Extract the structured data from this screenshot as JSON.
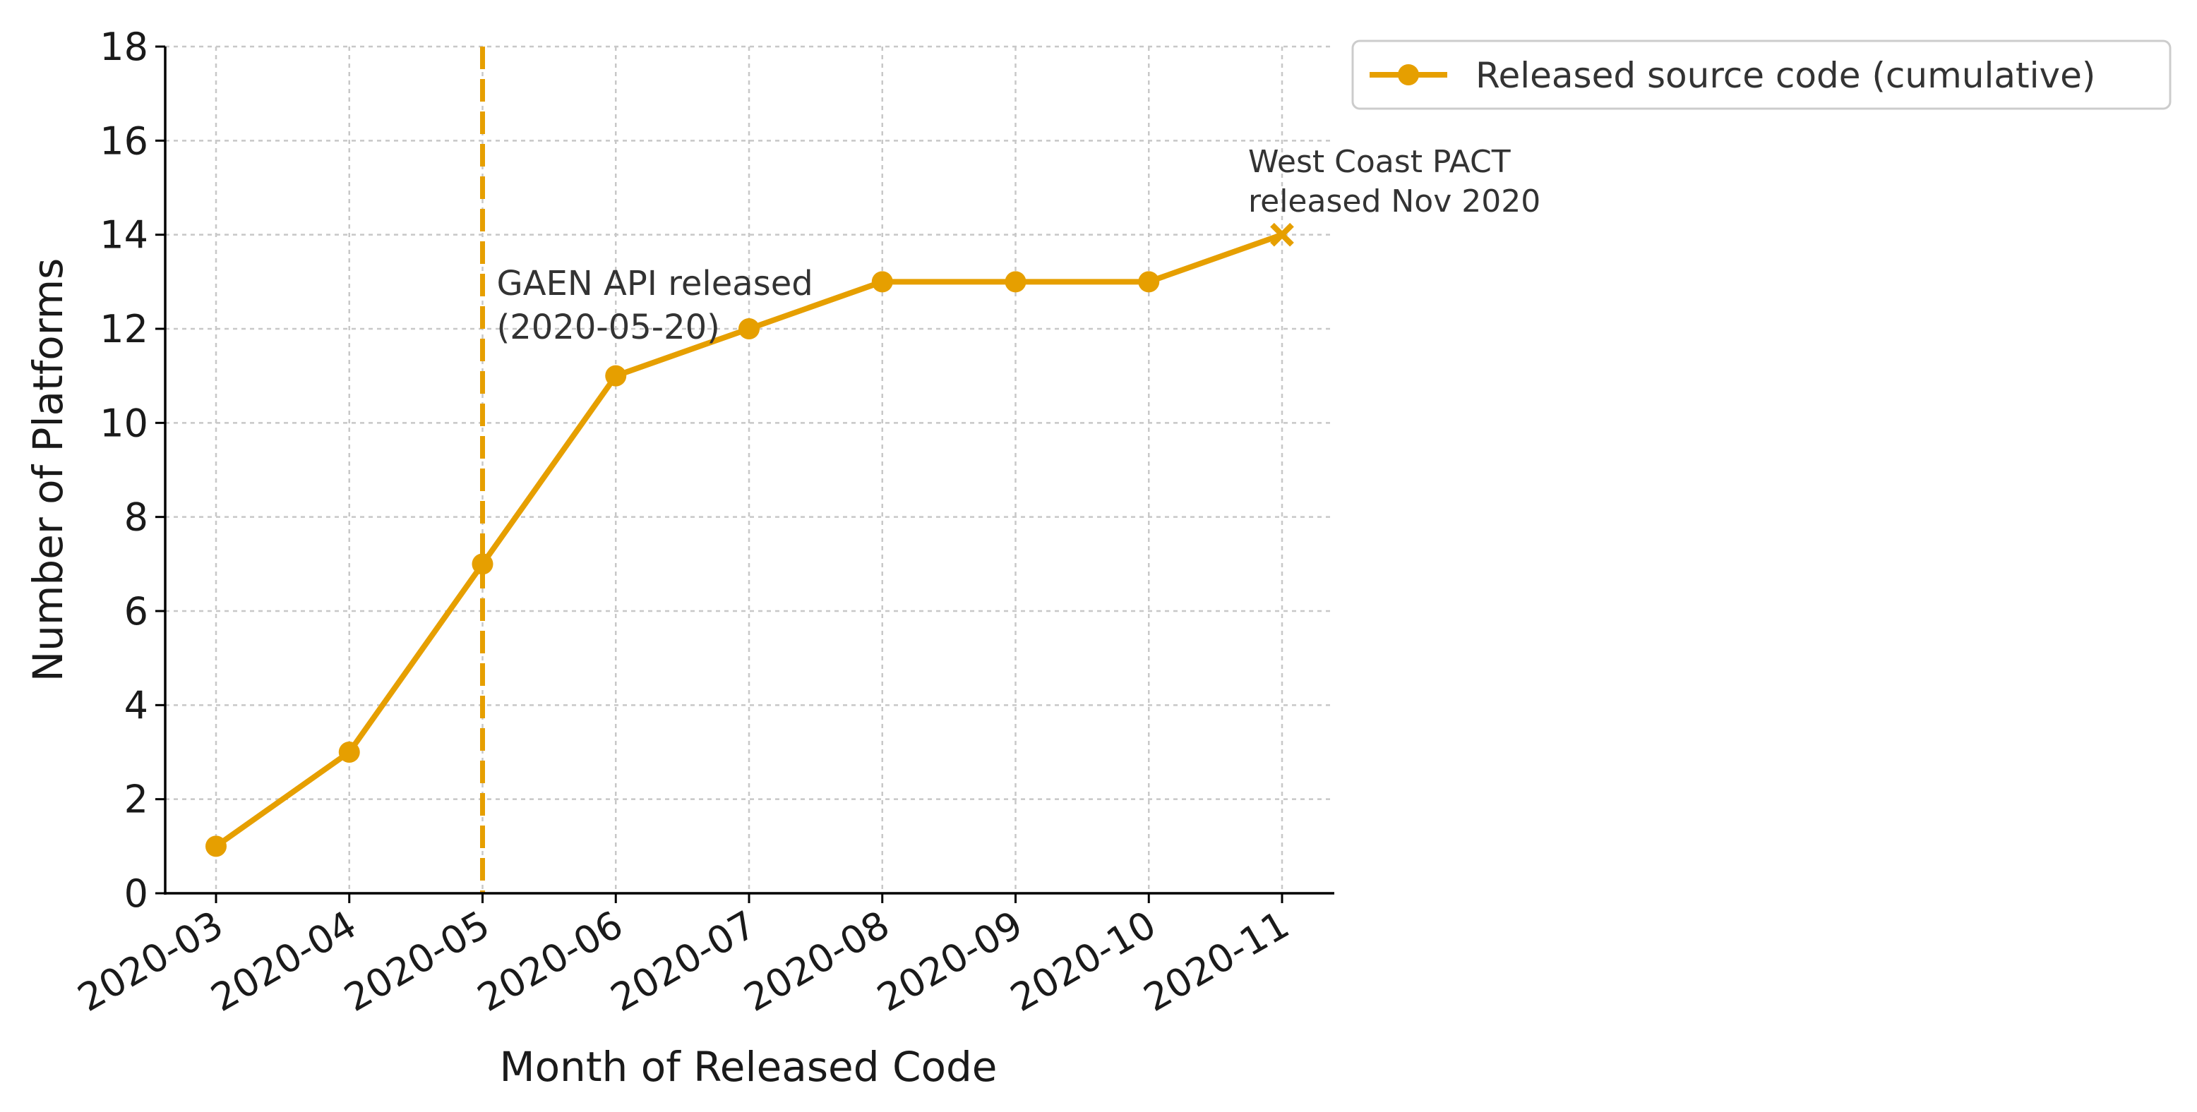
{
  "chart_data": {
    "type": "line",
    "xlabel": "Month of Released Code",
    "ylabel": "Number of Platforms",
    "categories": [
      "2020-03",
      "2020-04",
      "2020-05",
      "2020-06",
      "2020-07",
      "2020-08",
      "2020-09",
      "2020-10",
      "2020-11"
    ],
    "series": [
      {
        "name": "Released source code (cumulative)",
        "values": [
          1,
          3,
          7,
          11,
          12,
          13,
          13,
          13,
          14
        ],
        "color": "#E69F00"
      }
    ],
    "ylim": [
      0,
      18
    ],
    "yticks": [
      0,
      2,
      4,
      6,
      8,
      10,
      12,
      14,
      16,
      18
    ],
    "grid": true,
    "legend": "upper-right outside",
    "vline": {
      "x": "2020-05",
      "style": "dashed",
      "color": "#E69F00"
    },
    "annotations": [
      {
        "lines": [
          "GAEN API released",
          "(2020-05-20)"
        ]
      },
      {
        "lines": [
          "West Coast PACT",
          "released Nov 2020"
        ]
      }
    ],
    "last_point_marker": "x"
  }
}
